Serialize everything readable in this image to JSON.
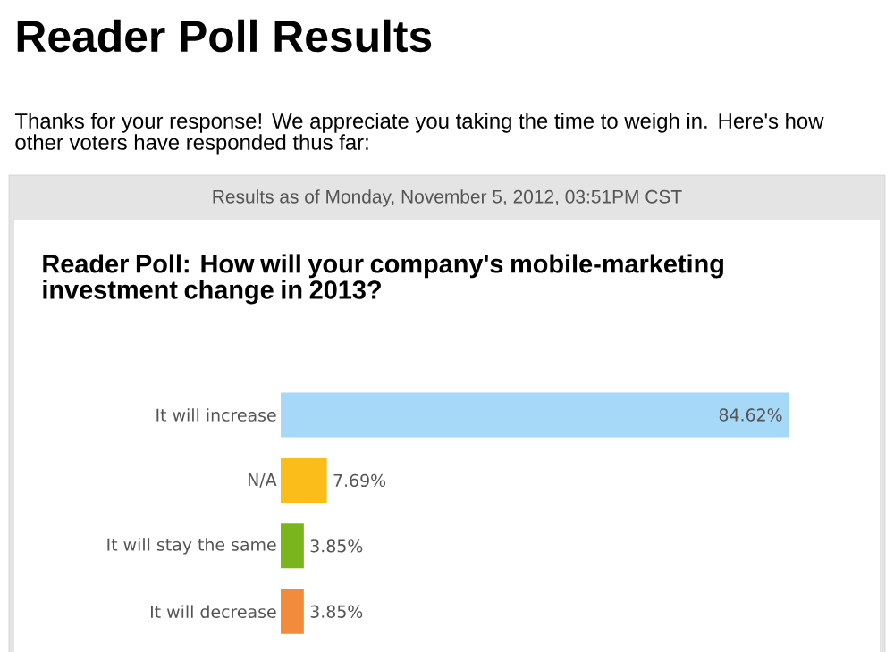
{
  "chart_data": {
    "type": "bar",
    "orientation": "horizontal",
    "title": "Reader Poll Results",
    "subtitle": "Reader Poll: How will your company's mobile-marketing investment change in 2013?",
    "annotations": [
      "Thanks for your response! We appreciate you taking the time to weigh in. Here's how other voters have responded thus far:",
      "Results as of Monday, November 5, 2012, 03:51PM CST"
    ],
    "categories": [
      "It will increase",
      "N/A",
      "It will stay the same",
      "It will decrease"
    ],
    "values": [
      84.62,
      7.69,
      3.85,
      3.85
    ],
    "value_labels": [
      "84.62%",
      "7.69%",
      "3.85%",
      "3.85%"
    ],
    "colors": [
      "#a6d8f7",
      "#fbbd19",
      "#7ab51d",
      "#f28b3c"
    ],
    "xlim": [
      0,
      84.62
    ]
  }
}
